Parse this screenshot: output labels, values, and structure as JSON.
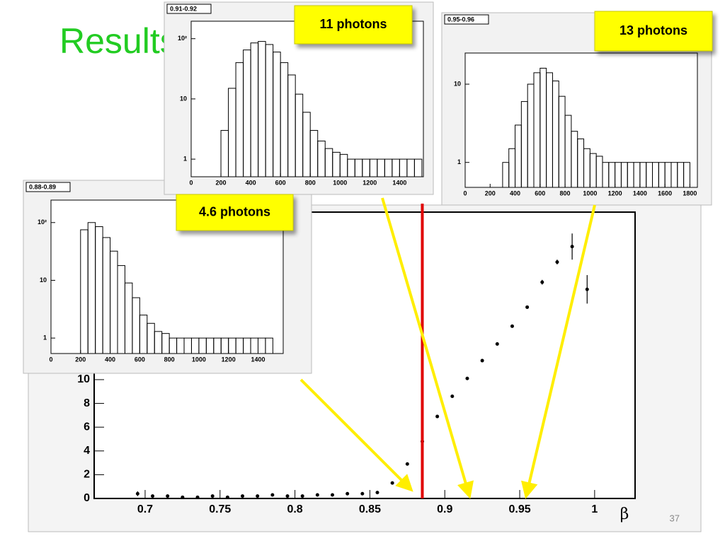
{
  "slide": {
    "title": "Results",
    "page_number": "37",
    "callouts": [
      "11 photons",
      "13 photons",
      "4.6 photons"
    ]
  },
  "chart_data": [
    {
      "type": "scatter",
      "x_label": "β",
      "x": [
        0.695,
        0.705,
        0.715,
        0.725,
        0.735,
        0.745,
        0.755,
        0.765,
        0.775,
        0.785,
        0.795,
        0.805,
        0.815,
        0.825,
        0.835,
        0.845,
        0.855,
        0.865,
        0.875,
        0.885,
        0.895,
        0.905,
        0.915,
        0.925,
        0.935,
        0.945,
        0.955,
        0.965,
        0.975,
        0.985,
        0.995
      ],
      "series": [
        {
          "color": "#000000",
          "values": [
            0.4,
            0.2,
            0.2,
            0.1,
            0.1,
            0.2,
            0.1,
            0.2,
            0.2,
            0.3,
            0.2,
            0.2,
            0.3,
            0.3,
            0.4,
            0.4,
            0.5,
            1.3,
            2.9,
            4.8,
            6.9,
            8.6,
            10.1,
            11.6,
            13.0,
            14.5,
            16.1,
            18.2,
            19.9,
            21.2,
            17.6
          ],
          "errors": [
            0.2,
            0.1,
            0.1,
            0.1,
            0.1,
            0.1,
            0.1,
            0.1,
            0.1,
            0.1,
            0.1,
            0.1,
            0.1,
            0.1,
            0.1,
            0.1,
            0.1,
            0.1,
            0.1,
            0.1,
            0.1,
            0.1,
            0.1,
            0.1,
            0.1,
            0.1,
            0.1,
            0.2,
            0.2,
            1.1,
            1.2
          ]
        }
      ],
      "xlim": [
        0.666,
        1.027
      ],
      "ylim": [
        0,
        24.1
      ],
      "xticks": [
        0.7,
        0.75,
        0.8,
        0.85,
        0.9,
        0.95,
        1
      ],
      "yticks": [
        0,
        2,
        4,
        6,
        8,
        10
      ],
      "threshold": 0.885,
      "threshold_color": "#e00000"
    },
    {
      "type": "histogram",
      "title": "0.88-0.89",
      "log_y": true,
      "color": "#000000",
      "bins": [
        200,
        250,
        300,
        350,
        400,
        450,
        500,
        550,
        600,
        650,
        700,
        750,
        800,
        850,
        900,
        950,
        1000,
        1050,
        1100,
        1150,
        1200,
        1250,
        1300,
        1350,
        1400,
        1450,
        1500
      ],
      "values": [
        75,
        100,
        85,
        55,
        32,
        18,
        9,
        5,
        2.5,
        1.8,
        1.3,
        1.2,
        1,
        1,
        1,
        1,
        1,
        1,
        1,
        1,
        1,
        1,
        1,
        1,
        1,
        1
      ],
      "xlim": [
        0,
        1570
      ],
      "ylim": [
        0.54,
        245
      ],
      "xticks": [
        0,
        200,
        400,
        600,
        800,
        1000,
        1200,
        1400
      ],
      "yticks": [
        1,
        10,
        {
          "value": 100,
          "label": "10²"
        }
      ]
    },
    {
      "type": "histogram",
      "title": "0.91-0.92",
      "log_y": true,
      "color": "#000000",
      "bins": [
        200,
        250,
        300,
        350,
        400,
        450,
        500,
        550,
        600,
        650,
        700,
        750,
        800,
        850,
        900,
        950,
        1000,
        1050,
        1100,
        1150,
        1200,
        1250,
        1300,
        1350,
        1400,
        1450,
        1500,
        1550
      ],
      "values": [
        3,
        15,
        40,
        65,
        85,
        90,
        80,
        60,
        40,
        25,
        12,
        6,
        3,
        2,
        1.5,
        1.3,
        1.2,
        1,
        1,
        1,
        1,
        1,
        1,
        1,
        1,
        1,
        1
      ],
      "xlim": [
        0,
        1560
      ],
      "ylim": [
        0.51,
        195
      ],
      "xticks": [
        0,
        200,
        400,
        600,
        800,
        1000,
        1200,
        1400
      ],
      "yticks": [
        1,
        10,
        {
          "value": 100,
          "label": "10²"
        }
      ]
    },
    {
      "type": "histogram",
      "title": "0.95-0.96",
      "log_y": true,
      "color": "#000000",
      "bins": [
        300,
        350,
        400,
        450,
        500,
        550,
        600,
        650,
        700,
        750,
        800,
        850,
        900,
        950,
        1000,
        1050,
        1100,
        1150,
        1200,
        1250,
        1300,
        1350,
        1400,
        1450,
        1500,
        1550,
        1600,
        1650,
        1700,
        1750,
        1800
      ],
      "values": [
        1,
        1.5,
        3,
        6,
        10,
        14,
        16,
        14,
        11,
        7,
        4,
        2.5,
        2,
        1.5,
        1.3,
        1.2,
        1,
        1,
        1,
        1,
        1,
        1,
        1,
        1,
        1,
        1,
        1,
        1,
        1,
        1
      ],
      "xlim": [
        0,
        1860
      ],
      "ylim": [
        0.48,
        25
      ],
      "xticks": [
        0,
        200,
        400,
        600,
        800,
        1000,
        1200,
        1400,
        1600,
        1800
      ],
      "yticks": [
        1,
        10
      ]
    }
  ]
}
